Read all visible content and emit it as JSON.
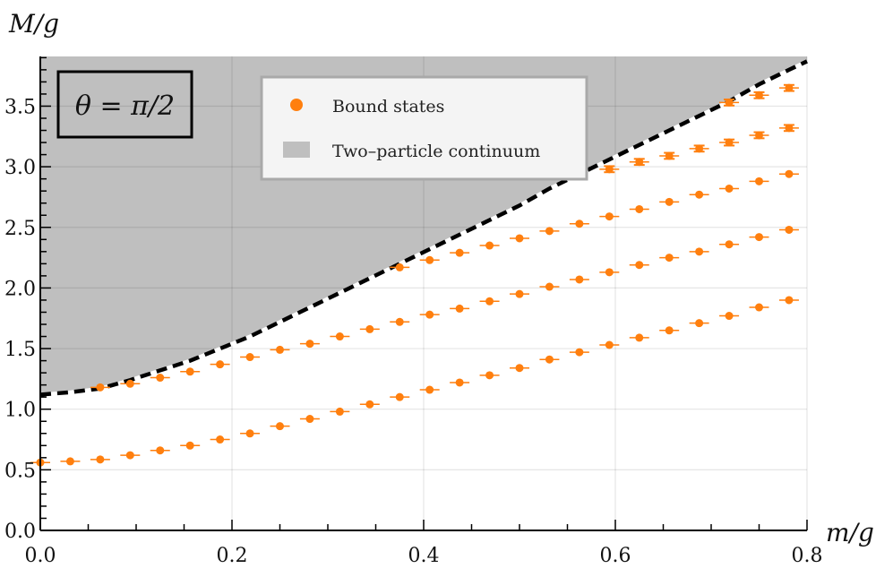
{
  "chart_data": {
    "type": "scatter",
    "title": "",
    "annotation": "θ = π/2",
    "xlabel": "m/g",
    "ylabel": "M/g",
    "xlim": [
      0.0,
      0.8
    ],
    "ylim": [
      0.0,
      3.91
    ],
    "x_ticks": [
      0.0,
      0.2,
      0.4,
      0.6,
      0.8
    ],
    "x_tick_labels": [
      "0.0",
      "0.2",
      "0.4",
      "0.6",
      "0.8"
    ],
    "y_ticks": [
      0.0,
      0.5,
      1.0,
      1.5,
      2.0,
      2.5,
      3.0,
      3.5
    ],
    "y_tick_labels": [
      "0.0",
      "0.5",
      "1.0",
      "1.5",
      "2.0",
      "2.5",
      "3.0",
      "3.5"
    ],
    "grid": true,
    "legend_position": "upper center",
    "legend": [
      {
        "label": "Bound states",
        "marker": "circle",
        "color": "#ff7f0e"
      },
      {
        "label": "Two–particle continuum",
        "marker": "square",
        "color": "#bfbfbf"
      }
    ],
    "continuum_threshold": {
      "style": "dashed",
      "color": "#000000",
      "x": [
        0.0,
        0.03125,
        0.0625,
        0.09375,
        0.125,
        0.15625,
        0.1875,
        0.21875,
        0.25,
        0.28125,
        0.3125,
        0.34375,
        0.375,
        0.40625,
        0.4375,
        0.46875,
        0.5,
        0.53125,
        0.5625,
        0.59375,
        0.625,
        0.65625,
        0.6875,
        0.71875,
        0.75,
        0.78125,
        0.8
      ],
      "y": [
        1.12,
        1.14,
        1.17,
        1.24,
        1.32,
        1.4,
        1.5,
        1.6,
        1.72,
        1.84,
        1.96,
        2.08,
        2.2,
        2.32,
        2.44,
        2.56,
        2.68,
        2.82,
        2.94,
        3.06,
        3.18,
        3.3,
        3.42,
        3.54,
        3.68,
        3.8,
        3.87
      ]
    },
    "series": [
      {
        "name": "Bound states (1st)",
        "color": "#ff7f0e",
        "x": [
          0.0,
          0.03125,
          0.0625,
          0.09375,
          0.125,
          0.15625,
          0.1875,
          0.21875,
          0.25,
          0.28125,
          0.3125,
          0.34375,
          0.375,
          0.40625,
          0.4375,
          0.46875,
          0.5,
          0.53125,
          0.5625,
          0.59375,
          0.625,
          0.65625,
          0.6875,
          0.71875,
          0.75,
          0.78125
        ],
        "y": [
          0.56,
          0.57,
          0.585,
          0.62,
          0.66,
          0.7,
          0.75,
          0.8,
          0.86,
          0.92,
          0.98,
          1.04,
          1.1,
          1.16,
          1.22,
          1.28,
          1.34,
          1.41,
          1.47,
          1.53,
          1.59,
          1.65,
          1.71,
          1.77,
          1.84,
          1.9
        ],
        "yerr": 0.01
      },
      {
        "name": "Bound states (2nd)",
        "color": "#ff7f0e",
        "x": [
          0.0625,
          0.09375,
          0.125,
          0.15625,
          0.1875,
          0.21875,
          0.25,
          0.28125,
          0.3125,
          0.34375,
          0.375,
          0.40625,
          0.4375,
          0.46875,
          0.5,
          0.53125,
          0.5625,
          0.59375,
          0.625,
          0.65625,
          0.6875,
          0.71875,
          0.75,
          0.78125
        ],
        "y": [
          1.18,
          1.21,
          1.26,
          1.31,
          1.37,
          1.43,
          1.49,
          1.54,
          1.6,
          1.66,
          1.72,
          1.78,
          1.83,
          1.89,
          1.95,
          2.01,
          2.07,
          2.13,
          2.19,
          2.25,
          2.3,
          2.36,
          2.42,
          2.48
        ],
        "yerr": 0.01
      },
      {
        "name": "Bound states (3rd)",
        "color": "#ff7f0e",
        "x": [
          0.375,
          0.40625,
          0.4375,
          0.46875,
          0.5,
          0.53125,
          0.5625,
          0.59375,
          0.625,
          0.65625,
          0.6875,
          0.71875,
          0.75,
          0.78125
        ],
        "y": [
          2.17,
          2.23,
          2.29,
          2.35,
          2.41,
          2.47,
          2.53,
          2.59,
          2.65,
          2.71,
          2.77,
          2.82,
          2.88,
          2.94
        ],
        "yerr": 0.01
      },
      {
        "name": "Bound states (4th)",
        "color": "#ff7f0e",
        "x": [
          0.59375,
          0.625,
          0.65625,
          0.6875,
          0.71875,
          0.75,
          0.78125
        ],
        "y": [
          2.98,
          3.04,
          3.09,
          3.15,
          3.2,
          3.26,
          3.32
        ],
        "yerr": 0.025
      },
      {
        "name": "Bound states (5th)",
        "color": "#ff7f0e",
        "x": [
          0.71875,
          0.75,
          0.78125
        ],
        "y": [
          3.53,
          3.59,
          3.65
        ],
        "yerr": 0.025
      }
    ]
  }
}
